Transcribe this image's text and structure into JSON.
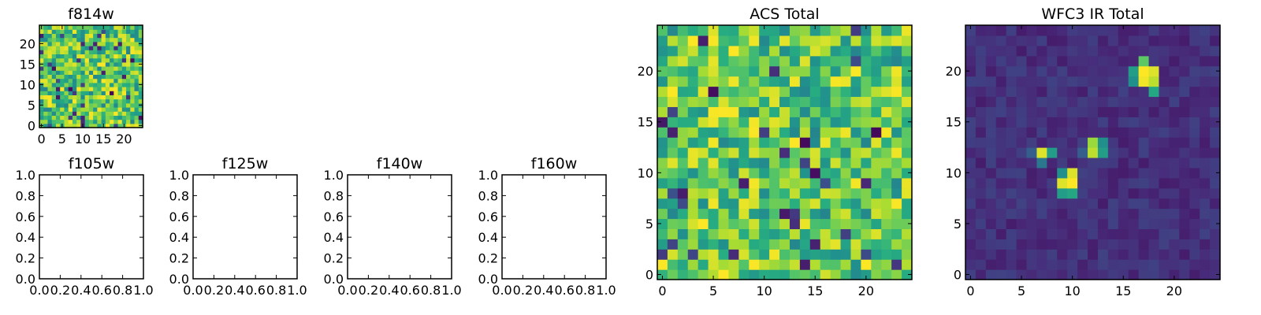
{
  "chart_data": [
    {
      "type": "heatmap",
      "title": "f814w",
      "xticks": [
        "0",
        "5",
        "10",
        "15",
        "20"
      ],
      "yticks": [
        "0",
        "5",
        "10",
        "15",
        "20"
      ],
      "xlim": [
        -0.5,
        24.5
      ],
      "ylim": [
        -0.5,
        24.5
      ],
      "grid_size": 25,
      "colormap": "viridis",
      "pattern": "noise",
      "seed": 814
    },
    {
      "type": "heatmap",
      "title": "f105w",
      "xticks": [
        "0.0",
        "0.2",
        "0.4",
        "0.6",
        "0.8",
        "1.0"
      ],
      "yticks": [
        "0.0",
        "0.2",
        "0.4",
        "0.6",
        "0.8",
        "1.0"
      ],
      "xlim": [
        0,
        1
      ],
      "ylim": [
        0,
        1
      ],
      "empty": true
    },
    {
      "type": "heatmap",
      "title": "f125w",
      "xticks": [
        "0.0",
        "0.2",
        "0.4",
        "0.6",
        "0.8",
        "1.0"
      ],
      "yticks": [
        "0.0",
        "0.2",
        "0.4",
        "0.6",
        "0.8",
        "1.0"
      ],
      "xlim": [
        0,
        1
      ],
      "ylim": [
        0,
        1
      ],
      "empty": true
    },
    {
      "type": "heatmap",
      "title": "f140w",
      "xticks": [
        "0.0",
        "0.2",
        "0.4",
        "0.6",
        "0.8",
        "1.0"
      ],
      "yticks": [
        "0.0",
        "0.2",
        "0.4",
        "0.6",
        "0.8",
        "1.0"
      ],
      "xlim": [
        0,
        1
      ],
      "ylim": [
        0,
        1
      ],
      "empty": true
    },
    {
      "type": "heatmap",
      "title": "f160w",
      "xticks": [
        "0.0",
        "0.2",
        "0.4",
        "0.6",
        "0.8",
        "1.0"
      ],
      "yticks": [
        "0.0",
        "0.2",
        "0.4",
        "0.6",
        "0.8",
        "1.0"
      ],
      "xlim": [
        0,
        1
      ],
      "ylim": [
        0,
        1
      ],
      "empty": true
    },
    {
      "type": "heatmap",
      "title": "ACS Total",
      "xticks": [
        "0",
        "5",
        "10",
        "15",
        "20"
      ],
      "yticks": [
        "0",
        "5",
        "10",
        "15",
        "20"
      ],
      "xlim": [
        -0.5,
        24.5
      ],
      "ylim": [
        -0.5,
        24.5
      ],
      "grid_size": 25,
      "colormap": "viridis",
      "pattern": "noise",
      "seed": 4242
    },
    {
      "type": "heatmap",
      "title": "WFC3 IR Total",
      "xticks": [
        "0",
        "5",
        "10",
        "15",
        "20"
      ],
      "yticks": [
        "0",
        "5",
        "10",
        "15",
        "20"
      ],
      "xlim": [
        -0.5,
        24.5
      ],
      "ylim": [
        -0.5,
        24.5
      ],
      "grid_size": 25,
      "colormap": "viridis",
      "pattern": "sources",
      "seed": 160,
      "sources": [
        {
          "x": 17,
          "y": 20,
          "value": 1.0
        },
        {
          "x": 18,
          "y": 20,
          "value": 0.95
        },
        {
          "x": 17,
          "y": 19,
          "value": 0.98
        },
        {
          "x": 18,
          "y": 19,
          "value": 0.9
        },
        {
          "x": 16,
          "y": 20,
          "value": 0.55
        },
        {
          "x": 17,
          "y": 21,
          "value": 0.75
        },
        {
          "x": 16,
          "y": 19,
          "value": 0.5
        },
        {
          "x": 18,
          "y": 18,
          "value": 0.6
        },
        {
          "x": 7,
          "y": 12,
          "value": 0.95
        },
        {
          "x": 8,
          "y": 12,
          "value": 0.55
        },
        {
          "x": 6,
          "y": 12,
          "value": 0.3
        },
        {
          "x": 7,
          "y": 11,
          "value": 0.4
        },
        {
          "x": 12,
          "y": 12,
          "value": 0.9
        },
        {
          "x": 12,
          "y": 13,
          "value": 0.85
        },
        {
          "x": 13,
          "y": 12,
          "value": 0.55
        },
        {
          "x": 13,
          "y": 13,
          "value": 0.5
        },
        {
          "x": 11,
          "y": 12,
          "value": 0.3
        },
        {
          "x": 10,
          "y": 10,
          "value": 0.95
        },
        {
          "x": 9,
          "y": 9,
          "value": 0.95
        },
        {
          "x": 10,
          "y": 9,
          "value": 1.0
        },
        {
          "x": 9,
          "y": 10,
          "value": 0.5
        },
        {
          "x": 9,
          "y": 8,
          "value": 0.55
        },
        {
          "x": 10,
          "y": 8,
          "value": 0.6
        }
      ]
    }
  ]
}
